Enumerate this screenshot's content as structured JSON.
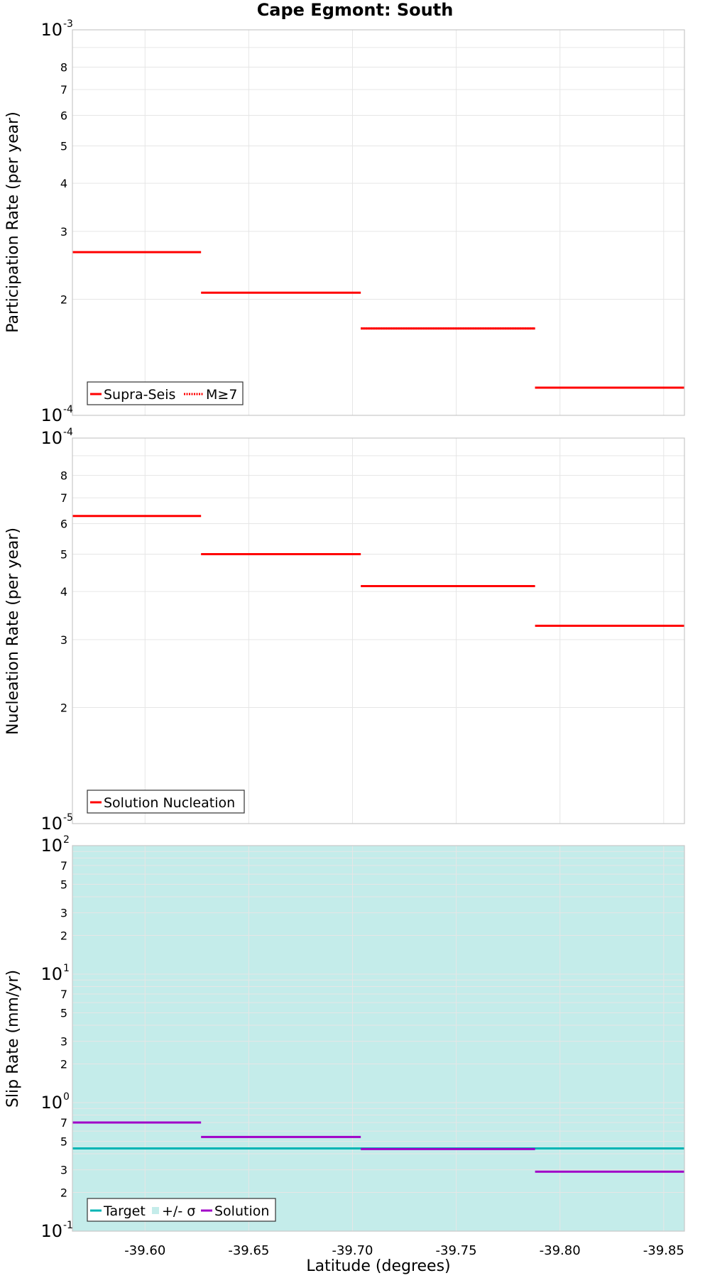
{
  "title": "Cape Egmont: South",
  "chart_data": [
    {
      "type": "line",
      "ylabel": "Participation Rate (per year)",
      "yscale": "log",
      "ylim_exp": [
        -4,
        -3
      ],
      "major_ticks": [
        {
          "base": "10",
          "exp": "-4"
        },
        {
          "base": "10",
          "exp": "-3"
        }
      ],
      "minor_ticks": [
        "2",
        "3",
        "4",
        "5",
        "6",
        "7",
        "8"
      ],
      "xlim": [
        -39.565,
        -39.86
      ],
      "x_inverted": true,
      "series": [
        {
          "name": "Supra-Seis",
          "color": "#ff0000",
          "style": "solid",
          "segments": [
            {
              "x0": -39.565,
              "x1": -39.627,
              "y": 0.000265
            },
            {
              "x0": -39.627,
              "x1": -39.704,
              "y": 0.000208
            },
            {
              "x0": -39.704,
              "x1": -39.788,
              "y": 0.000168
            },
            {
              "x0": -39.788,
              "x1": -39.86,
              "y": 0.000118
            }
          ]
        },
        {
          "name": "M≥7",
          "color": "#ff0000",
          "style": "dotted",
          "segments": [
            {
              "x0": -39.704,
              "x1": -39.788,
              "y": 0.000168
            },
            {
              "x0": -39.788,
              "x1": -39.86,
              "y": 0.000118
            }
          ]
        }
      ],
      "legend": {
        "position": "bottom-left",
        "items": [
          {
            "label": "Supra-Seis"
          },
          {
            "label": "M≥7"
          }
        ]
      }
    },
    {
      "type": "line",
      "ylabel": "Nucleation Rate (per year)",
      "yscale": "log",
      "ylim_exp": [
        -5,
        -4
      ],
      "major_ticks": [
        {
          "base": "10",
          "exp": "-5"
        },
        {
          "base": "10",
          "exp": "-4"
        }
      ],
      "minor_ticks": [
        "2",
        "3",
        "4",
        "5",
        "6",
        "7",
        "8"
      ],
      "xlim": [
        -39.565,
        -39.86
      ],
      "x_inverted": true,
      "series": [
        {
          "name": "Solution Nucleation",
          "color": "#ff0000",
          "style": "solid",
          "segments": [
            {
              "x0": -39.565,
              "x1": -39.627,
              "y": 6.28e-05
            },
            {
              "x0": -39.627,
              "x1": -39.704,
              "y": 5e-05
            },
            {
              "x0": -39.704,
              "x1": -39.788,
              "y": 4.13e-05
            },
            {
              "x0": -39.788,
              "x1": -39.86,
              "y": 3.26e-05
            }
          ]
        }
      ],
      "legend": {
        "position": "bottom-left",
        "items": [
          {
            "label": "Solution Nucleation"
          }
        ]
      }
    },
    {
      "type": "line",
      "ylabel": "Slip Rate (mm/yr)",
      "xlabel": "Latitude (degrees)",
      "yscale": "log",
      "ylim_exp": [
        -1,
        2
      ],
      "major_ticks": [
        {
          "base": "10",
          "exp": "-1"
        },
        {
          "base": "10",
          "exp": "0"
        },
        {
          "base": "10",
          "exp": "1"
        },
        {
          "base": "10",
          "exp": "2"
        }
      ],
      "minor_ticks": [
        "2",
        "3",
        "5",
        "7"
      ],
      "xlim": [
        -39.565,
        -39.86
      ],
      "x_inverted": true,
      "x_ticks": [
        "-39.60",
        "-39.65",
        "-39.70",
        "-39.75",
        "-39.80",
        "-39.85"
      ],
      "background": "#c4ecea",
      "series": [
        {
          "name": "Target",
          "color": "#00b4b4",
          "style": "solid",
          "segments": [
            {
              "x0": -39.565,
              "x1": -39.86,
              "y": 0.44
            }
          ]
        },
        {
          "name": "Solution",
          "color": "#a000c8",
          "style": "solid",
          "segments": [
            {
              "x0": -39.565,
              "x1": -39.627,
              "y": 0.7
            },
            {
              "x0": -39.627,
              "x1": -39.704,
              "y": 0.54
            },
            {
              "x0": -39.704,
              "x1": -39.788,
              "y": 0.435
            },
            {
              "x0": -39.788,
              "x1": -39.86,
              "y": 0.29
            }
          ]
        }
      ],
      "legend": {
        "position": "bottom-left",
        "items": [
          {
            "label": "Target"
          },
          {
            "label": "+/- σ"
          },
          {
            "label": "Solution"
          }
        ]
      }
    }
  ]
}
